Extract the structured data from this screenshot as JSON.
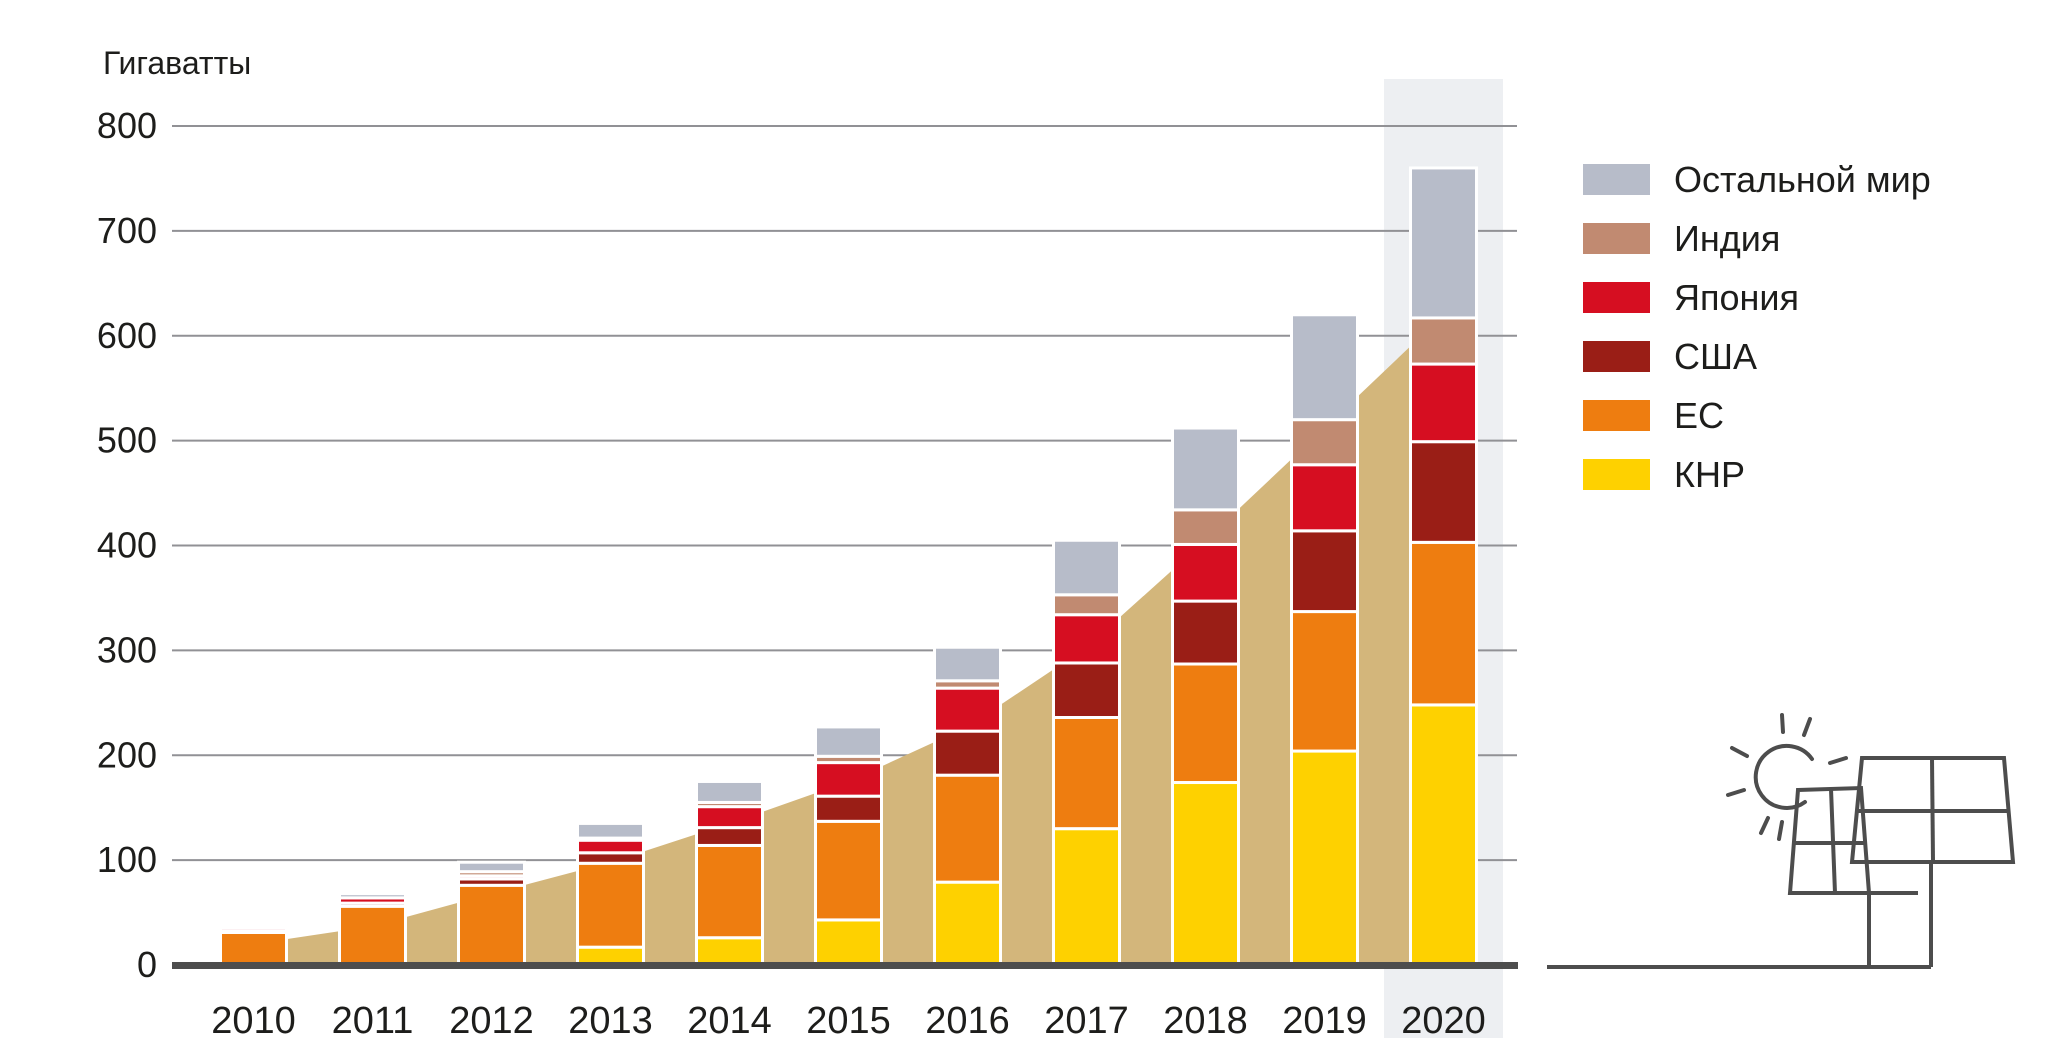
{
  "page": {
    "background": "#ffffff"
  },
  "chart_data": {
    "type": "bar",
    "stacked": true,
    "title": "",
    "ylabel": "Гигаватты",
    "xlabel": "",
    "categories": [
      "2010",
      "2011",
      "2012",
      "2013",
      "2014",
      "2015",
      "2016",
      "2017",
      "2018",
      "2019",
      "2020"
    ],
    "series": [
      {
        "name": "КНР",
        "color": "#fed100",
        "values": [
          0,
          0,
          0,
          17,
          26,
          43,
          79,
          130,
          174,
          204,
          248
        ]
      },
      {
        "name": "ЕС",
        "color": "#ee7d10",
        "values": [
          31,
          56,
          76,
          80,
          88,
          94,
          102,
          106,
          113,
          133,
          155
        ]
      },
      {
        "name": "США",
        "color": "#9a1e16",
        "values": [
          1,
          3,
          6,
          10,
          17,
          24,
          42,
          52,
          60,
          77,
          96
        ]
      },
      {
        "name": "Япония",
        "color": "#d60e21",
        "values": [
          3,
          5,
          3,
          12,
          20,
          32,
          41,
          46,
          54,
          63,
          74
        ]
      },
      {
        "name": "Индия",
        "color": "#c18a71",
        "values": [
          0,
          0,
          4,
          2,
          4,
          6,
          7,
          19,
          33,
          43,
          44
        ]
      },
      {
        "name": "Остальной мир",
        "color": "#b7bcc9",
        "values": [
          2,
          4,
          9,
          14,
          20,
          28,
          32,
          52,
          78,
          100,
          143
        ]
      }
    ],
    "totals": [
      37,
      68,
      98,
      135,
      175,
      227,
      303,
      405,
      512,
      620,
      760
    ],
    "yticks": [
      0,
      100,
      200,
      300,
      400,
      500,
      600,
      700,
      800
    ],
    "ylim": [
      0,
      800
    ],
    "grid": true,
    "gridline_color": "#919195",
    "axis_color": "#4d4d4d",
    "text_color": "#1d1d1b",
    "legend_position": "right",
    "trend_area": {
      "color": "#d3b67b",
      "values": [
        20,
        37,
        68,
        98,
        135,
        175,
        227,
        303,
        405,
        512,
        620
      ]
    },
    "highlight_category": "2020",
    "highlight_color": "#edeff2",
    "segment_gap_color": "#ffffff"
  },
  "legend": {
    "items": [
      {
        "label": "Остальной мир",
        "color": "#b7bcc9"
      },
      {
        "label": "Индия",
        "color": "#c18a71"
      },
      {
        "label": "Япония",
        "color": "#d60e21"
      },
      {
        "label": "США",
        "color": "#9a1e16"
      },
      {
        "label": "ЕС",
        "color": "#ee7d10"
      },
      {
        "label": "КНР",
        "color": "#fed100"
      }
    ]
  },
  "illustration": {
    "name": "solar-panels-with-sun",
    "stroke_color": "#4d4d4d"
  }
}
